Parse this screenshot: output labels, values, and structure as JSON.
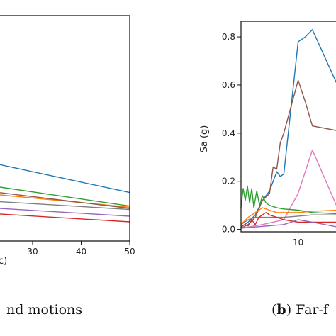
{
  "chart_data": [
    {
      "type": "line",
      "panel": "a",
      "caption": {
        "pre": "",
        "label": "",
        "post": "nd motions"
      },
      "xlabel_fragment": "c)",
      "x_ticks": [
        30,
        40,
        50
      ],
      "xlim": [
        23,
        50
      ],
      "ylim": [
        0,
        1
      ],
      "series": [
        {
          "color": "#1f77b4",
          "points": [
            [
              23,
              0.34
            ],
            [
              50,
              0.215
            ]
          ]
        },
        {
          "color": "#2ca02c",
          "points": [
            [
              23,
              0.24
            ],
            [
              50,
              0.155
            ]
          ]
        },
        {
          "color": "#ff7f0e",
          "points": [
            [
              23,
              0.205
            ],
            [
              50,
              0.15
            ]
          ]
        },
        {
          "color": "#8c564b",
          "points": [
            [
              23,
              0.215
            ],
            [
              50,
              0.145
            ]
          ]
        },
        {
          "color": "#7f7f7f",
          "points": [
            [
              23,
              0.175
            ],
            [
              50,
              0.14
            ]
          ]
        },
        {
          "color": "#9467bd",
          "points": [
            [
              23,
              0.145
            ],
            [
              50,
              0.11
            ]
          ]
        },
        {
          "color": "#d62728",
          "points": [
            [
              23,
              0.12
            ],
            [
              50,
              0.085
            ]
          ]
        }
      ]
    },
    {
      "type": "line",
      "panel": "b",
      "caption": {
        "pre": "(",
        "label": "b",
        "post": ") Far-f"
      },
      "ylabel": "Sa (g)",
      "x_ticks": [
        10
      ],
      "y_ticks": [
        0.0,
        0.2,
        0.4,
        0.6,
        0.8
      ],
      "xlim": [
        2,
        15.5
      ],
      "ylim": [
        -0.01,
        0.865
      ],
      "series": [
        {
          "color": "#1f77b4",
          "points": [
            [
              2,
              0.01
            ],
            [
              3,
              0.03
            ],
            [
              4,
              0.06
            ],
            [
              5,
              0.12
            ],
            [
              6,
              0.16
            ],
            [
              7,
              0.24
            ],
            [
              7.5,
              0.22
            ],
            [
              8,
              0.23
            ],
            [
              10,
              0.78
            ],
            [
              11,
              0.8
            ],
            [
              12,
              0.83
            ],
            [
              15.5,
              0.6
            ]
          ]
        },
        {
          "color": "#8c564b",
          "points": [
            [
              2,
              0.005
            ],
            [
              3,
              0.02
            ],
            [
              4,
              0.05
            ],
            [
              5,
              0.12
            ],
            [
              6,
              0.15
            ],
            [
              6.5,
              0.26
            ],
            [
              7,
              0.25
            ],
            [
              7.5,
              0.36
            ],
            [
              8,
              0.4
            ],
            [
              10,
              0.62
            ],
            [
              11,
              0.53
            ],
            [
              12,
              0.43
            ],
            [
              15.5,
              0.41
            ]
          ]
        },
        {
          "color": "#e377c2",
          "points": [
            [
              2,
              0.005
            ],
            [
              5,
              0.02
            ],
            [
              8,
              0.04
            ],
            [
              10,
              0.15
            ],
            [
              12,
              0.33
            ],
            [
              15.5,
              0.09
            ]
          ]
        },
        {
          "color": "#2ca02c",
          "points": [
            [
              2,
              0.09
            ],
            [
              2.3,
              0.17
            ],
            [
              2.6,
              0.12
            ],
            [
              2.9,
              0.18
            ],
            [
              3.2,
              0.11
            ],
            [
              3.5,
              0.17
            ],
            [
              3.8,
              0.09
            ],
            [
              4.2,
              0.16
            ],
            [
              4.6,
              0.1
            ],
            [
              5,
              0.14
            ],
            [
              5.5,
              0.11
            ],
            [
              6,
              0.1
            ],
            [
              7,
              0.09
            ],
            [
              8,
              0.085
            ],
            [
              10,
              0.08
            ],
            [
              12,
              0.07
            ],
            [
              15.5,
              0.065
            ]
          ]
        },
        {
          "color": "#ff7f0e",
          "points": [
            [
              2,
              0.02
            ],
            [
              3,
              0.05
            ],
            [
              4,
              0.07
            ],
            [
              5,
              0.09
            ],
            [
              6,
              0.08
            ],
            [
              7,
              0.07
            ],
            [
              8,
              0.07
            ],
            [
              10,
              0.07
            ],
            [
              12,
              0.075
            ],
            [
              15.5,
              0.08
            ]
          ]
        },
        {
          "color": "#7f7f7f",
          "points": [
            [
              2,
              0.02
            ],
            [
              3,
              0.04
            ],
            [
              4,
              0.05
            ],
            [
              6,
              0.05
            ],
            [
              8,
              0.05
            ],
            [
              10,
              0.055
            ],
            [
              12,
              0.06
            ],
            [
              15.5,
              0.06
            ]
          ]
        },
        {
          "color": "#d62728",
          "points": [
            [
              2,
              0.01
            ],
            [
              2.5,
              0.02
            ],
            [
              3,
              0.015
            ],
            [
              3.5,
              0.04
            ],
            [
              4,
              0.02
            ],
            [
              4.5,
              0.05
            ],
            [
              5,
              0.06
            ],
            [
              5.5,
              0.07
            ],
            [
              6,
              0.06
            ],
            [
              7,
              0.05
            ],
            [
              8,
              0.04
            ],
            [
              10,
              0.03
            ],
            [
              12,
              0.03
            ],
            [
              15.5,
              0.03
            ]
          ]
        },
        {
          "color": "#9467bd",
          "points": [
            [
              2,
              0.005
            ],
            [
              4,
              0.01
            ],
            [
              6,
              0.015
            ],
            [
              8,
              0.02
            ],
            [
              10,
              0.04
            ],
            [
              12,
              0.03
            ],
            [
              15.5,
              0.01
            ]
          ]
        }
      ]
    }
  ]
}
